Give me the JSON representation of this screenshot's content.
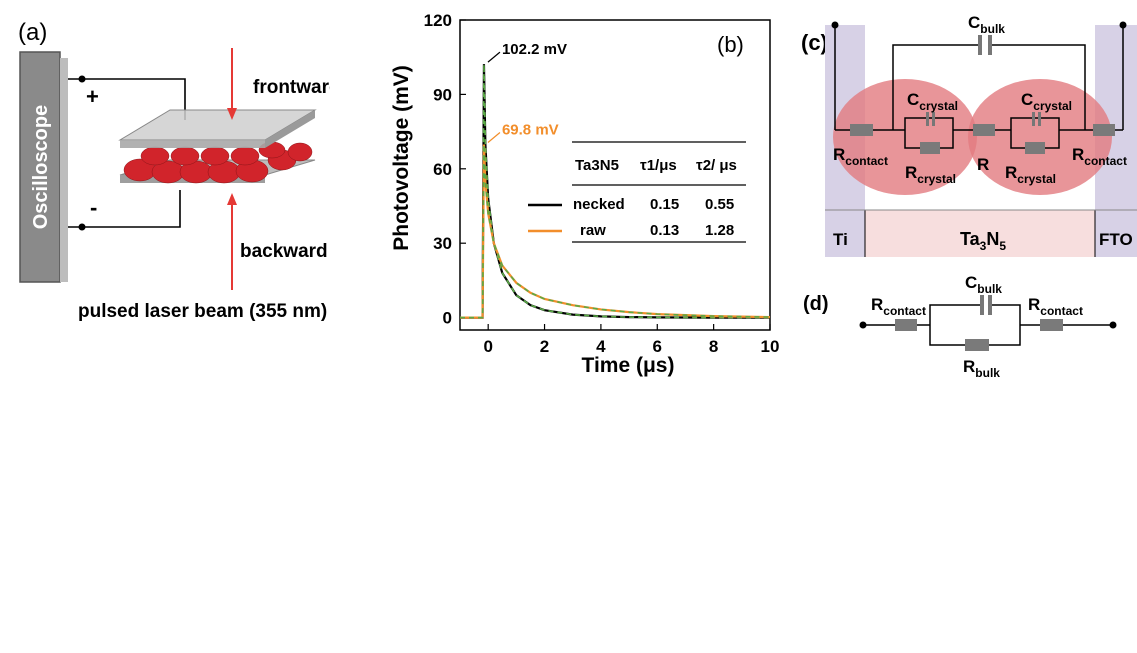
{
  "panel_a": {
    "label": "(a)",
    "oscilloscope": "Oscilloscope",
    "plus": "+",
    "minus": "-",
    "frontward": "frontward",
    "backward": "backward",
    "laser": "pulsed laser beam (355 nm)"
  },
  "panel_c": {
    "label": "(c)",
    "c_bulk": {
      "main": "C",
      "sub": "bulk"
    },
    "c_crystal": {
      "main": "C",
      "sub": "crystal"
    },
    "r_crystal": {
      "main": "R",
      "sub": "crystal"
    },
    "r_contact": {
      "main": "R",
      "sub": "contact"
    },
    "r": "R",
    "ti": "Ti",
    "fto": "FTO",
    "ta3n5": {
      "main": "Ta",
      "sub1": "3",
      "mid": "N",
      "sub2": "5"
    }
  },
  "panel_d": {
    "label": "(d)",
    "r_contact": {
      "main": "R",
      "sub": "contact"
    },
    "c_bulk": {
      "main": "C",
      "sub": "bulk"
    },
    "r_bulk": {
      "main": "R",
      "sub": "bulk"
    }
  },
  "chart_data": {
    "type": "line",
    "panel_label": "(b)",
    "xlabel": "Time (μs)",
    "ylabel": "Photovoltage (mV)",
    "xlim": [
      -1,
      10
    ],
    "ylim": [
      -5,
      120
    ],
    "xticks": [
      0,
      2,
      4,
      6,
      8,
      10
    ],
    "yticks": [
      0,
      30,
      60,
      90,
      120
    ],
    "xtick_labels": [
      "0",
      "2",
      "4",
      "6",
      "8",
      "10"
    ],
    "ytick_labels": [
      "0",
      "30",
      "60",
      "90",
      "120"
    ],
    "grid": false,
    "colors": {
      "necked": "#000000",
      "raw": "#f28e2b",
      "fit": "#5aaa46"
    },
    "series": [
      {
        "name": "necked",
        "x": [
          -1,
          -0.2,
          -0.15,
          -0.1,
          0,
          0.2,
          0.5,
          1,
          1.5,
          2,
          3,
          4,
          5,
          6,
          8,
          10
        ],
        "y": [
          0,
          0,
          102.2,
          70,
          48,
          30,
          18,
          9,
          5,
          3,
          1.2,
          0.5,
          0.2,
          0.1,
          0,
          0
        ]
      },
      {
        "name": "raw",
        "x": [
          -1,
          -0.2,
          -0.15,
          -0.1,
          0,
          0.2,
          0.5,
          1,
          1.5,
          2,
          3,
          4,
          5,
          6,
          8,
          10
        ],
        "y": [
          0,
          0,
          69.8,
          55,
          42,
          30,
          21,
          14,
          10,
          7.5,
          5,
          3.3,
          2.2,
          1.4,
          0.6,
          0.2
        ]
      }
    ],
    "annotations": [
      {
        "text": "102.2 mV",
        "x": -0.15,
        "y": 102.2,
        "color": "#000000"
      },
      {
        "text": "69.8 mV",
        "x": -0.15,
        "y": 69.8,
        "color": "#f28e2b"
      }
    ],
    "table": {
      "headers": [
        "Ta3N5",
        "τ1/μs",
        "τ2/ μs"
      ],
      "rows": [
        [
          "necked",
          "0.15",
          "0.55"
        ],
        [
          "raw",
          "0.13",
          "1.28"
        ]
      ]
    }
  }
}
